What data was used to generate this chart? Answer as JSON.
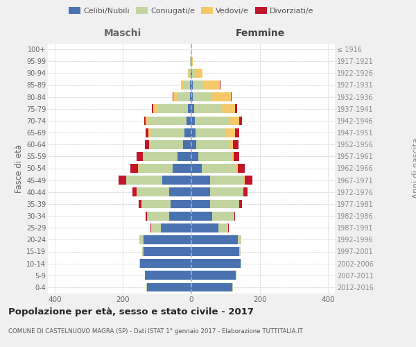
{
  "age_groups": [
    "0-4",
    "5-9",
    "10-14",
    "15-19",
    "20-24",
    "25-29",
    "30-34",
    "35-39",
    "40-44",
    "45-49",
    "50-54",
    "55-59",
    "60-64",
    "65-69",
    "70-74",
    "75-79",
    "80-84",
    "85-89",
    "90-94",
    "95-99",
    "100+"
  ],
  "birth_years": [
    "2012-2016",
    "2007-2011",
    "2002-2006",
    "1997-2001",
    "1992-1996",
    "1987-1991",
    "1982-1986",
    "1977-1981",
    "1972-1976",
    "1967-1971",
    "1962-1966",
    "1957-1961",
    "1952-1956",
    "1947-1951",
    "1942-1946",
    "1937-1941",
    "1932-1936",
    "1927-1931",
    "1922-1926",
    "1917-1921",
    "≤ 1916"
  ],
  "maschi": {
    "celibi": [
      130,
      135,
      150,
      140,
      140,
      90,
      65,
      60,
      65,
      85,
      55,
      40,
      25,
      20,
      15,
      10,
      5,
      5,
      3,
      2,
      1
    ],
    "coniugati": [
      1,
      1,
      2,
      5,
      12,
      28,
      65,
      85,
      95,
      105,
      100,
      100,
      95,
      100,
      110,
      90,
      38,
      20,
      6,
      2,
      0
    ],
    "vedovi": [
      0,
      0,
      0,
      0,
      0,
      0,
      0,
      1,
      1,
      1,
      2,
      2,
      3,
      5,
      8,
      12,
      10,
      5,
      2,
      0,
      0
    ],
    "divorziati": [
      0,
      0,
      0,
      0,
      0,
      1,
      4,
      8,
      12,
      22,
      22,
      18,
      12,
      8,
      5,
      3,
      2,
      1,
      0,
      0,
      0
    ]
  },
  "femmine": {
    "nubili": [
      120,
      130,
      145,
      140,
      135,
      80,
      60,
      55,
      55,
      55,
      30,
      20,
      15,
      12,
      10,
      8,
      5,
      4,
      2,
      1,
      1
    ],
    "coniugate": [
      1,
      1,
      2,
      5,
      12,
      28,
      65,
      85,
      95,
      100,
      100,
      95,
      95,
      90,
      100,
      80,
      55,
      30,
      12,
      2,
      0
    ],
    "vedove": [
      0,
      0,
      0,
      0,
      0,
      0,
      0,
      1,
      2,
      2,
      5,
      8,
      12,
      25,
      30,
      40,
      55,
      50,
      18,
      2,
      0
    ],
    "divorziate": [
      0,
      0,
      0,
      0,
      0,
      1,
      3,
      8,
      12,
      22,
      22,
      18,
      15,
      12,
      8,
      5,
      3,
      2,
      1,
      0,
      0
    ]
  },
  "colors": {
    "celibi": "#4A72B0",
    "coniugati": "#C2D4A0",
    "vedovi": "#F5C96A",
    "divorziati": "#C0152B"
  },
  "xlim": 420,
  "title": "Popolazione per età, sesso e stato civile - 2017",
  "subtitle": "COMUNE DI CASTELNUOVO MAGRA (SP) - Dati ISTAT 1° gennaio 2017 - Elaborazione TUTTITALIA.IT",
  "ylabel_left": "Fasce di età",
  "ylabel_right": "Anni di nascita",
  "xlabel_left": "Maschi",
  "xlabel_right": "Femmine",
  "bg_color": "#f0f0f0",
  "plot_bg": "#ffffff"
}
